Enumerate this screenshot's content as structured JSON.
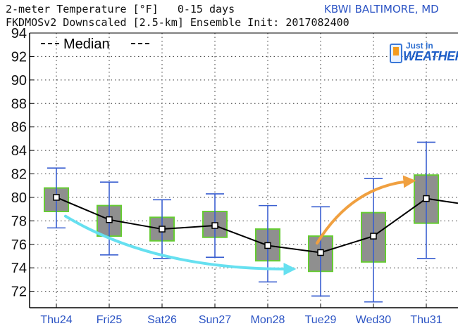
{
  "header": {
    "title_line1": "2-meter Temperature [°F]   0-15 days",
    "title_line2": "FKDMOSv2 Downscaled [2.5-km] Ensemble Init: 2017082400",
    "station": "KBWI BALTIMORE, MD"
  },
  "logo": {
    "text_small": "Just In",
    "text_big": "WEATHER",
    "icon": "phone-icon"
  },
  "chart_data": {
    "type": "box",
    "xlabel": "",
    "ylabel": "",
    "ylim": [
      70.6,
      94
    ],
    "yticks": [
      72,
      74,
      76,
      78,
      80,
      82,
      84,
      86,
      88,
      90,
      92,
      94
    ],
    "grid": true,
    "legend": {
      "placement": "top-left",
      "entries": [
        {
          "label": "Median",
          "style": "dashed-line"
        }
      ]
    },
    "categories": [
      "Thu24",
      "Fri25",
      "Sat26",
      "Sun27",
      "Mon28",
      "Tue29",
      "Wed30",
      "Thu31"
    ],
    "median": [
      80.0,
      78.1,
      77.3,
      77.6,
      75.9,
      75.3,
      76.7,
      79.9
    ],
    "box_low": [
      78.8,
      76.7,
      76.3,
      76.6,
      74.6,
      73.7,
      74.5,
      77.8
    ],
    "box_high": [
      80.8,
      79.3,
      78.3,
      78.8,
      77.3,
      76.7,
      78.7,
      81.9
    ],
    "whisker_low": [
      77.4,
      75.1,
      74.8,
      74.9,
      72.8,
      71.6,
      71.1,
      74.8
    ],
    "whisker_high": [
      82.5,
      81.3,
      79.8,
      80.3,
      79.3,
      79.2,
      81.6,
      84.7
    ],
    "median_line_end": 79.5,
    "colors": {
      "box_fill": "#8f8f8f",
      "box_edge": "#66cc33",
      "whisker": "#3a5fd0",
      "median_line": "#000000",
      "tick_label_x": "#2c54c4",
      "cool_arrow": "#66e0f0",
      "warm_arrow": "#f0a040"
    },
    "annotations": [
      {
        "type": "arrow",
        "from_category": "Thu24",
        "to_category": "Tue29",
        "meaning": "cooling trend",
        "color": "#66e0f0"
      },
      {
        "type": "arrow",
        "from_category": "Tue29",
        "to_category": "Thu31",
        "meaning": "warming trend",
        "color": "#f0a040"
      }
    ]
  }
}
